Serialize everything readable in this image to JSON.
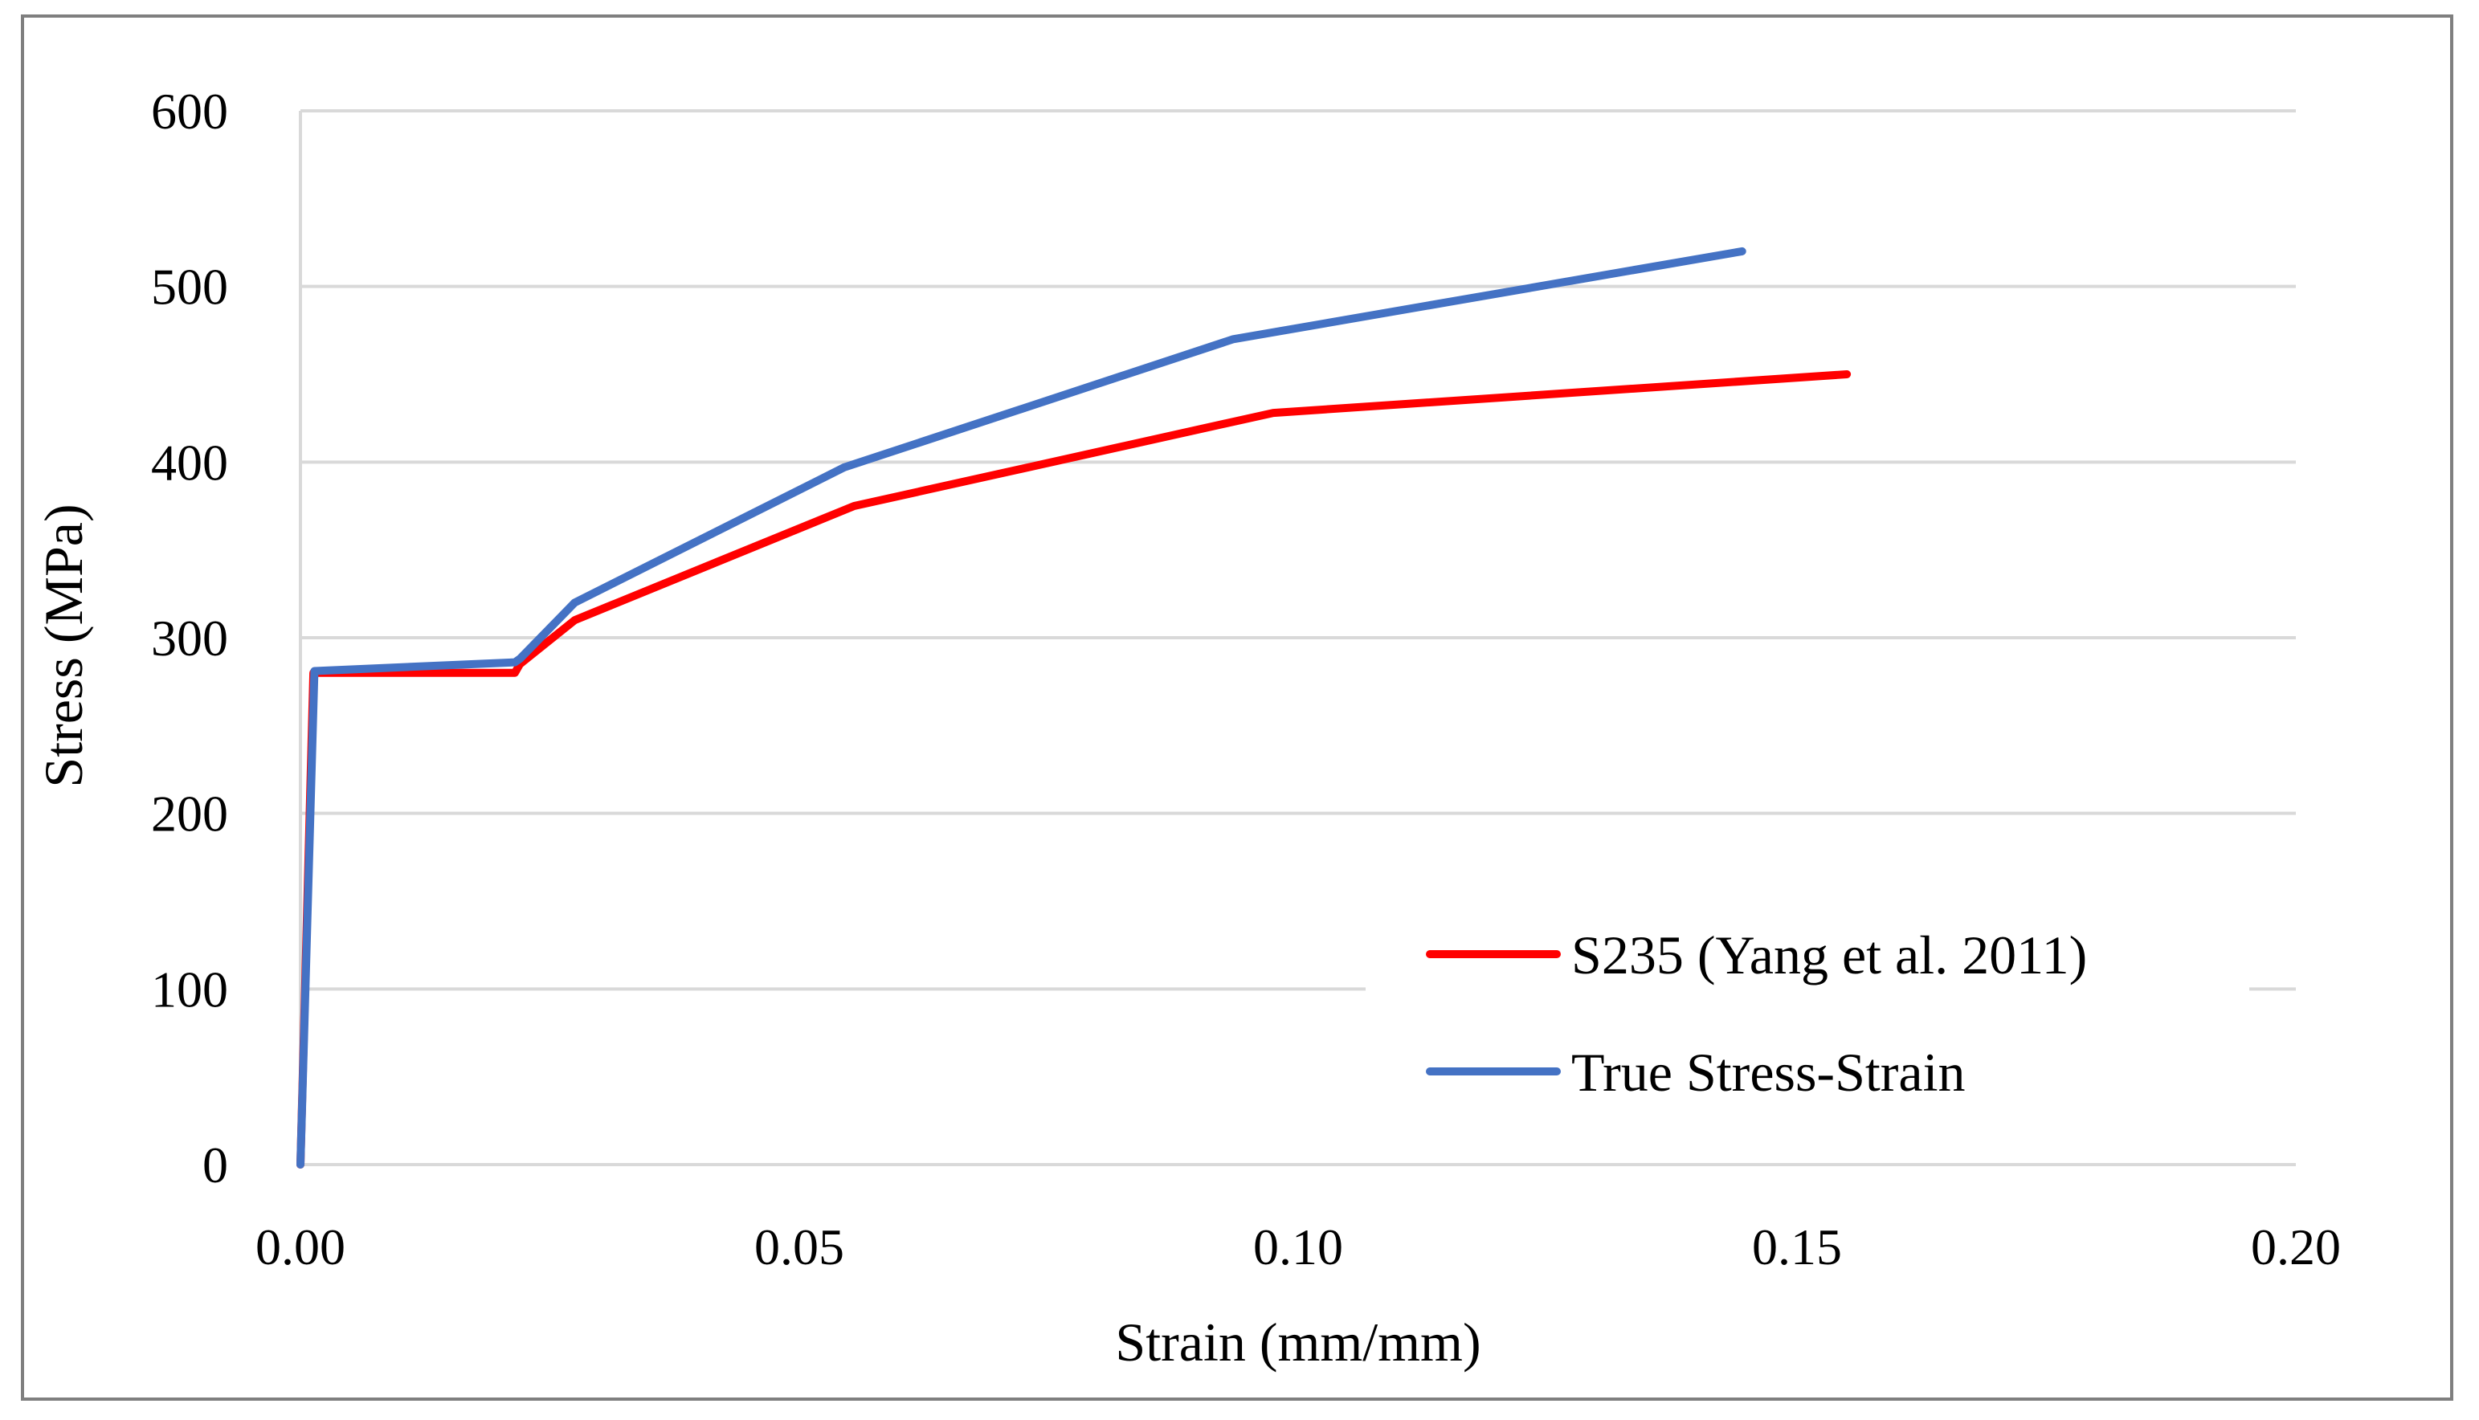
{
  "chart_data": {
    "type": "line",
    "title": "",
    "xlabel": "Strain (mm/mm)",
    "ylabel": "Stress (MPa)",
    "xlim": [
      0,
      0.2
    ],
    "ylim": [
      0,
      600
    ],
    "xticks": [
      0,
      0.05,
      0.1,
      0.15,
      0.2
    ],
    "xtick_labels": [
      "0.00",
      "0.05",
      "0.10",
      "0.15",
      "0.20"
    ],
    "yticks": [
      0,
      100,
      200,
      300,
      400,
      500,
      600
    ],
    "ytick_labels": [
      "0",
      "100",
      "200",
      "300",
      "400",
      "500",
      "600"
    ],
    "grid": true,
    "legend_position": "bottom-right",
    "series": [
      {
        "name": "S235 (Yang et al. 2011)",
        "color": "#ff0000",
        "x": [
          0,
          0.0013,
          0.0215,
          0.022,
          0.0275,
          0.0555,
          0.0975,
          0.155
        ],
        "y": [
          0,
          280,
          280,
          285,
          310,
          375,
          428,
          450
        ]
      },
      {
        "name": "True Stress-Strain",
        "color": "#4472c4",
        "x": [
          0,
          0.0014,
          0.0215,
          0.022,
          0.0275,
          0.0545,
          0.0935,
          0.1445
        ],
        "y": [
          0,
          281,
          286,
          288,
          320,
          397,
          470,
          520
        ]
      }
    ]
  }
}
